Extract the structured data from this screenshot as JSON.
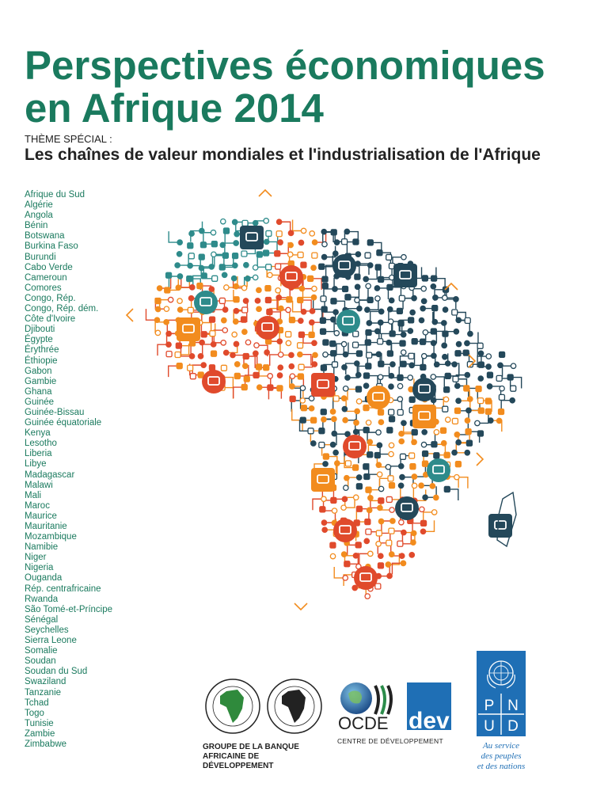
{
  "cover": {
    "title_line1": "Perspectives économiques",
    "title_line2": "en Afrique 2014",
    "theme_label": "THÈME SPÉCIAL :",
    "subtitle": "Les chaînes de valeur mondiales et l'industrialisation de l'Afrique"
  },
  "countries": [
    "Afrique du Sud",
    "Algérie",
    "Angola",
    "Bénin",
    "Botswana",
    "Burkina Faso",
    "Burundi",
    "Cabo Verde",
    "Cameroun",
    "Comores",
    "Congo, Rép.",
    "Congo, Rép. dém.",
    "Côte d'Ivoire",
    "Djibouti",
    "Égypte",
    "Érythrée",
    "Éthiopie",
    "Gabon",
    "Gambie",
    "Ghana",
    "Guinée",
    "Guinée-Bissau",
    "Guinée équatoriale",
    "Kenya",
    "Lesotho",
    "Liberia",
    "Libye",
    "Madagascar",
    "Malawi",
    "Mali",
    "Maroc",
    "Maurice",
    "Mauritanie",
    "Mozambique",
    "Namibie",
    "Niger",
    "Nigeria",
    "Ouganda",
    "Rép. centrafricaine",
    "Rwanda",
    "São Tomé-et-Príncipe",
    "Sénégal",
    "Seychelles",
    "Sierra Leone",
    "Somalie",
    "Soudan",
    "Soudan du Sud",
    "Swaziland",
    "Tanzanie",
    "Tchad",
    "Togo",
    "Tunisie",
    "Zambie",
    "Zimbabwe"
  ],
  "logos": {
    "afdb_line1": "GROUPE DE LA BANQUE",
    "afdb_line2": "AFRICAINE DE DÉVELOPPEMENT",
    "afdb_seal_text": "BANQUE AFRICAINE DE DÉVELOPPEMENT · AFRICAN DEVELOPMENT BANK · AFRICAN DEVELOPMENT FUND · FONDS AFRICAIN DE DÉVELOPPEMENT",
    "ocde": "OCDE",
    "dev": "dev",
    "ocde_sub": "CENTRE DE DÉVELOPPEMENT",
    "pnud_letters": [
      "P",
      "N",
      "U",
      "D"
    ],
    "pnud_tag1": "Au service",
    "pnud_tag2": "des peuples",
    "pnud_tag3": "et des nations"
  },
  "colors": {
    "title_green": "#1a7a5e",
    "map_teal": "#2e8b8b",
    "map_dark": "#24485a",
    "map_orange": "#f28c1e",
    "map_red": "#e04a2c",
    "undp_blue": "#1f6fb5"
  },
  "icons": [
    "truck-icon",
    "tshirt-icon",
    "house-icon",
    "shopping-bag-icon",
    "gear-icon",
    "music-icon",
    "tractor-icon",
    "tv-icon",
    "tools-icon",
    "wifi-icon",
    "cow-icon",
    "cement-mixer-icon",
    "ship-icon",
    "oil-rig-icon",
    "pen-icon",
    "car-icon",
    "phone-icon",
    "computer-icon"
  ]
}
